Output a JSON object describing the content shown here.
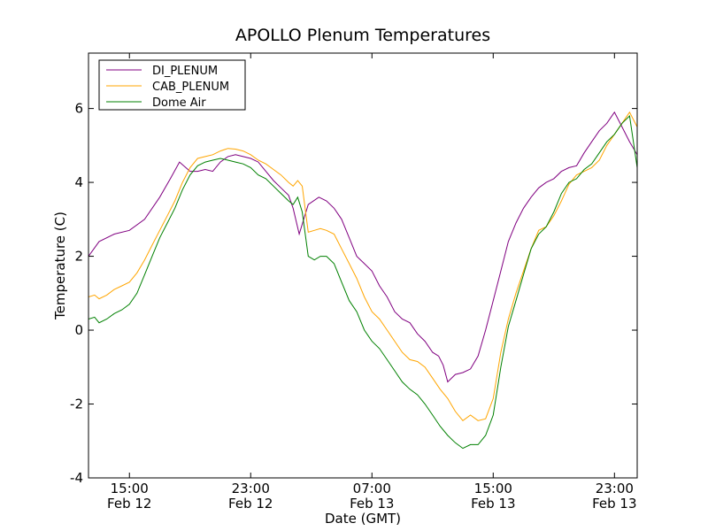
{
  "chart_data": {
    "type": "line",
    "title": "APOLLO Plenum Temperatures",
    "xlabel": "Date (GMT)",
    "ylabel": "Temperature (C)",
    "x_unit": "hours since Feb 12 15:00 GMT",
    "xlim": [
      -2.7,
      33.5
    ],
    "ylim": [
      -4,
      7.5
    ],
    "yticks": [
      -4,
      -2,
      0,
      2,
      4,
      6
    ],
    "ytick_labels": [
      "-4",
      "-2",
      "0",
      "2",
      "4",
      "6"
    ],
    "xticks": [
      {
        "x": 0,
        "time": "15:00",
        "date": "Feb 12"
      },
      {
        "x": 8,
        "time": "23:00",
        "date": "Feb 12"
      },
      {
        "x": 16,
        "time": "07:00",
        "date": "Feb 13"
      },
      {
        "x": 24,
        "time": "15:00",
        "date": "Feb 13"
      },
      {
        "x": 32,
        "time": "23:00",
        "date": "Feb 13"
      }
    ],
    "legend_position": "top-left",
    "series": [
      {
        "name": "DI_PLENUM",
        "color": "#800080",
        "x": [
          -2.7,
          -2.0,
          -1.0,
          0.0,
          1.0,
          2.0,
          2.7,
          3.3,
          4.0,
          4.5,
          5.0,
          5.5,
          6.0,
          6.5,
          7.0,
          7.5,
          8.0,
          8.5,
          9.0,
          9.5,
          10.0,
          10.5,
          10.8,
          11.2,
          11.8,
          12.5,
          13.0,
          13.5,
          14.0,
          14.5,
          15.0,
          15.5,
          16.0,
          16.5,
          17.0,
          17.5,
          18.0,
          18.5,
          19.0,
          19.5,
          20.0,
          20.4,
          20.7,
          21.0,
          21.5,
          22.0,
          22.5,
          23.0,
          23.5,
          24.0,
          24.5,
          25.0,
          25.5,
          26.0,
          26.5,
          27.0,
          27.5,
          28.0,
          28.5,
          29.0,
          29.5,
          30.0,
          30.5,
          31.0,
          31.5,
          32.0,
          32.5,
          33.0,
          33.5
        ],
        "values": [
          2.0,
          2.4,
          2.6,
          2.7,
          3.0,
          3.6,
          4.1,
          4.55,
          4.3,
          4.3,
          4.35,
          4.3,
          4.55,
          4.7,
          4.75,
          4.7,
          4.65,
          4.55,
          4.3,
          4.05,
          3.85,
          3.65,
          3.3,
          2.6,
          3.4,
          3.6,
          3.5,
          3.3,
          3.0,
          2.5,
          2.0,
          1.8,
          1.6,
          1.2,
          0.9,
          0.5,
          0.3,
          0.2,
          -0.1,
          -0.3,
          -0.6,
          -0.7,
          -0.95,
          -1.4,
          -1.2,
          -1.15,
          -1.05,
          -0.7,
          0.0,
          0.8,
          1.6,
          2.4,
          2.9,
          3.3,
          3.6,
          3.85,
          4.0,
          4.1,
          4.3,
          4.4,
          4.45,
          4.8,
          5.1,
          5.4,
          5.6,
          5.9,
          5.5,
          5.1,
          4.75
        ]
      },
      {
        "name": "CAB_PLENUM",
        "color": "#ffa500",
        "x": [
          -2.7,
          -2.3,
          -2.0,
          -1.5,
          -1.0,
          -0.5,
          0.0,
          0.5,
          1.0,
          1.5,
          2.0,
          2.5,
          3.0,
          3.5,
          4.0,
          4.5,
          5.0,
          5.5,
          6.0,
          6.5,
          7.0,
          7.5,
          8.0,
          8.5,
          9.0,
          9.5,
          10.0,
          10.5,
          10.8,
          11.1,
          11.4,
          11.8,
          12.2,
          12.6,
          13.0,
          13.5,
          14.0,
          14.5,
          15.0,
          15.5,
          16.0,
          16.5,
          17.0,
          17.5,
          18.0,
          18.5,
          19.0,
          19.5,
          20.0,
          20.5,
          21.0,
          21.5,
          22.0,
          22.5,
          23.0,
          23.5,
          24.0,
          24.5,
          25.0,
          25.5,
          26.0,
          26.5,
          27.0,
          27.5,
          28.0,
          28.5,
          29.0,
          29.5,
          30.0,
          30.5,
          31.0,
          31.5,
          32.0,
          32.5,
          33.0,
          33.5
        ],
        "values": [
          0.9,
          0.95,
          0.85,
          0.95,
          1.1,
          1.2,
          1.3,
          1.55,
          1.9,
          2.3,
          2.7,
          3.1,
          3.5,
          4.0,
          4.4,
          4.65,
          4.7,
          4.75,
          4.85,
          4.92,
          4.9,
          4.85,
          4.75,
          4.6,
          4.5,
          4.35,
          4.2,
          4.0,
          3.9,
          4.05,
          3.9,
          2.65,
          2.7,
          2.75,
          2.7,
          2.6,
          2.2,
          1.8,
          1.4,
          0.9,
          0.5,
          0.3,
          0.0,
          -0.3,
          -0.6,
          -0.8,
          -0.85,
          -1.0,
          -1.3,
          -1.6,
          -1.85,
          -2.2,
          -2.45,
          -2.3,
          -2.45,
          -2.4,
          -1.85,
          -0.6,
          0.3,
          1.0,
          1.6,
          2.2,
          2.7,
          2.8,
          3.1,
          3.5,
          3.95,
          4.2,
          4.3,
          4.4,
          4.6,
          5.0,
          5.3,
          5.6,
          5.9,
          5.5
        ]
      },
      {
        "name": "Dome Air",
        "color": "#008000",
        "x": [
          -2.7,
          -2.3,
          -2.0,
          -1.5,
          -1.0,
          -0.5,
          0.0,
          0.5,
          1.0,
          1.5,
          2.0,
          2.5,
          3.0,
          3.5,
          4.0,
          4.5,
          5.0,
          5.5,
          6.0,
          6.5,
          7.0,
          7.5,
          8.0,
          8.5,
          9.0,
          9.5,
          10.0,
          10.5,
          10.8,
          11.1,
          11.4,
          11.8,
          12.2,
          12.6,
          13.0,
          13.5,
          14.0,
          14.5,
          15.0,
          15.5,
          16.0,
          16.5,
          17.0,
          17.5,
          18.0,
          18.5,
          19.0,
          19.5,
          20.0,
          20.5,
          21.0,
          21.5,
          22.0,
          22.5,
          23.0,
          23.5,
          24.0,
          24.5,
          25.0,
          25.5,
          26.0,
          26.5,
          27.0,
          27.5,
          28.0,
          28.5,
          29.0,
          29.5,
          30.0,
          30.5,
          31.0,
          31.5,
          32.0,
          32.5,
          33.0,
          33.5
        ],
        "values": [
          0.3,
          0.35,
          0.2,
          0.3,
          0.45,
          0.55,
          0.7,
          1.0,
          1.5,
          2.0,
          2.5,
          2.9,
          3.3,
          3.8,
          4.2,
          4.45,
          4.55,
          4.6,
          4.65,
          4.6,
          4.55,
          4.5,
          4.4,
          4.2,
          4.1,
          3.9,
          3.7,
          3.5,
          3.4,
          3.6,
          3.2,
          2.0,
          1.9,
          2.0,
          2.0,
          1.8,
          1.3,
          0.8,
          0.5,
          0.0,
          -0.3,
          -0.5,
          -0.8,
          -1.1,
          -1.4,
          -1.6,
          -1.75,
          -2.0,
          -2.3,
          -2.6,
          -2.85,
          -3.05,
          -3.2,
          -3.1,
          -3.1,
          -2.85,
          -2.3,
          -1.0,
          0.1,
          0.8,
          1.5,
          2.2,
          2.6,
          2.8,
          3.2,
          3.7,
          4.0,
          4.1,
          4.35,
          4.5,
          4.8,
          5.1,
          5.3,
          5.6,
          5.8,
          4.4
        ]
      }
    ]
  }
}
